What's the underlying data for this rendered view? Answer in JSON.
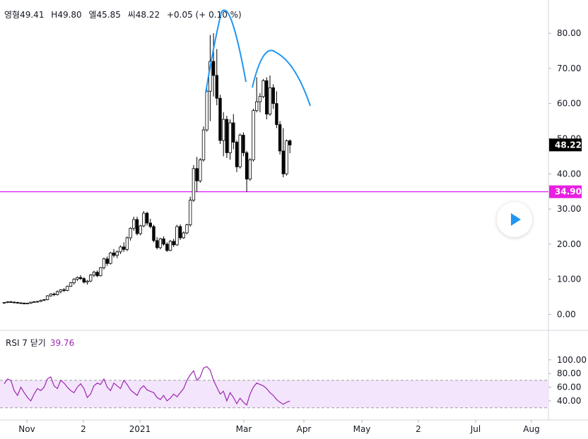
{
  "legend": {
    "open_label": "영형",
    "open": "49.41",
    "high_label": "H",
    "high": "49.80",
    "low_label": "엘",
    "low": "45.85",
    "close_label": "씨",
    "close": "48.22",
    "change": "+0.05 (+ 0.10 %)"
  },
  "rsi_legend": {
    "label": "RSI 7 닫기",
    "value": "39.76"
  },
  "price_axis": {
    "ticks": [
      "80.00",
      "70.00",
      "60.00",
      "50.00",
      "40.00",
      "30.00",
      "20.00",
      "10.00",
      "0.00"
    ]
  },
  "rsi_axis": {
    "ticks": [
      "100.00",
      "80.00",
      "60.00",
      "40.00"
    ]
  },
  "time_axis": {
    "labels": [
      "Nov",
      "2",
      "2021",
      "Mar",
      "Apr",
      "May",
      "2",
      "Jul",
      "Aug"
    ]
  },
  "markers": {
    "last_price": "48.22",
    "support_level": "34.90",
    "support_value": 34.9
  },
  "colors": {
    "candle_up": "#ffffff",
    "candle_down": "#000000",
    "pattern_line": "#2196f3",
    "support_line": "#d500f9",
    "rsi_line": "#9c27b0",
    "rsi_band": "#f3e5fc",
    "last_price_bg": "#000000",
    "support_bg": "#e91ee0"
  },
  "chart_data": {
    "type": "candlestick",
    "ylim": [
      -3,
      88
    ],
    "x_axis_labels": [
      "Nov",
      "2",
      "2021",
      "Mar",
      "Apr",
      "May",
      "2",
      "Jul",
      "Aug"
    ],
    "candles": [
      [
        3.2,
        3.5,
        3.0,
        3.4
      ],
      [
        3.4,
        3.7,
        3.2,
        3.6
      ],
      [
        3.6,
        3.8,
        3.3,
        3.5
      ],
      [
        3.5,
        3.7,
        3.2,
        3.4
      ],
      [
        3.4,
        3.6,
        3.1,
        3.3
      ],
      [
        3.3,
        3.5,
        3.0,
        3.2
      ],
      [
        3.2,
        3.4,
        2.9,
        3.1
      ],
      [
        3.1,
        3.3,
        2.9,
        3.2
      ],
      [
        3.2,
        3.6,
        3.0,
        3.5
      ],
      [
        3.5,
        3.8,
        3.3,
        3.6
      ],
      [
        3.6,
        3.9,
        3.4,
        3.7
      ],
      [
        3.7,
        4.2,
        3.5,
        4.0
      ],
      [
        4.0,
        4.4,
        3.8,
        4.2
      ],
      [
        4.2,
        5.5,
        4.0,
        5.3
      ],
      [
        5.3,
        6.0,
        5.0,
        5.8
      ],
      [
        5.8,
        6.2,
        5.2,
        5.6
      ],
      [
        5.6,
        6.8,
        5.4,
        6.5
      ],
      [
        6.5,
        7.2,
        6.0,
        7.0
      ],
      [
        7.0,
        7.5,
        6.4,
        6.8
      ],
      [
        6.8,
        8.2,
        6.6,
        8.0
      ],
      [
        8.0,
        9.2,
        7.8,
        9.0
      ],
      [
        9.0,
        10.3,
        8.5,
        10.0
      ],
      [
        10.0,
        10.8,
        9.5,
        10.5
      ],
      [
        10.5,
        11.2,
        9.8,
        10.2
      ],
      [
        10.2,
        10.6,
        8.8,
        9.2
      ],
      [
        9.2,
        9.8,
        8.5,
        9.5
      ],
      [
        9.5,
        11.5,
        9.2,
        11.2
      ],
      [
        11.2,
        12.4,
        10.6,
        12.0
      ],
      [
        12.0,
        12.5,
        10.6,
        11.0
      ],
      [
        11.0,
        13.5,
        10.8,
        13.3
      ],
      [
        13.3,
        16.2,
        12.8,
        15.8
      ],
      [
        15.8,
        16.5,
        13.8,
        14.5
      ],
      [
        14.5,
        17.8,
        14.2,
        17.5
      ],
      [
        17.5,
        18.6,
        16.2,
        16.8
      ],
      [
        16.8,
        18.2,
        16.0,
        17.8
      ],
      [
        17.8,
        19.6,
        17.2,
        19.2
      ],
      [
        19.2,
        20.5,
        17.8,
        18.5
      ],
      [
        18.5,
        22.2,
        18.0,
        21.8
      ],
      [
        21.8,
        24.8,
        21.0,
        24.5
      ],
      [
        24.5,
        27.8,
        23.8,
        27.0
      ],
      [
        27.0,
        27.8,
        22.5,
        23.0
      ],
      [
        23.0,
        25.5,
        22.5,
        25.2
      ],
      [
        25.2,
        29.4,
        24.8,
        28.8
      ],
      [
        28.8,
        29.2,
        25.3,
        26.0
      ],
      [
        26.0,
        27.2,
        24.5,
        25.0
      ],
      [
        25.0,
        25.5,
        20.5,
        21.0
      ],
      [
        21.0,
        22.0,
        18.5,
        19.0
      ],
      [
        19.0,
        21.8,
        18.5,
        21.5
      ],
      [
        21.5,
        22.2,
        19.5,
        20.0
      ],
      [
        20.0,
        20.5,
        17.8,
        18.2
      ],
      [
        18.2,
        21.2,
        18.0,
        20.8
      ],
      [
        20.8,
        21.5,
        19.2,
        19.8
      ],
      [
        19.8,
        25.5,
        19.5,
        25.0
      ],
      [
        25.0,
        25.6,
        21.2,
        21.8
      ],
      [
        21.8,
        23.6,
        21.5,
        23.2
      ],
      [
        23.2,
        25.8,
        22.8,
        25.5
      ],
      [
        25.5,
        33.5,
        25.0,
        32.5
      ],
      [
        32.5,
        42.5,
        32.0,
        41.5
      ],
      [
        41.5,
        44.8,
        34.9,
        38.0
      ],
      [
        38.0,
        44.5,
        37.5,
        44.0
      ],
      [
        44.0,
        53.5,
        43.5,
        52.5
      ],
      [
        52.5,
        64.5,
        52.0,
        63.5
      ],
      [
        63.5,
        79.5,
        55.0,
        72.0
      ],
      [
        72.0,
        80.0,
        62.0,
        68.0
      ],
      [
        68.0,
        75.5,
        59.5,
        61.5
      ],
      [
        61.5,
        62.5,
        48.5,
        49.5
      ],
      [
        49.5,
        57.5,
        45.0,
        55.5
      ],
      [
        55.5,
        56.5,
        44.5,
        46.0
      ],
      [
        46.0,
        55.5,
        44.0,
        54.5
      ],
      [
        54.5,
        57.0,
        47.0,
        49.0
      ],
      [
        49.0,
        49.5,
        40.5,
        42.0
      ],
      [
        42.0,
        51.5,
        41.5,
        51.0
      ],
      [
        51.0,
        51.8,
        45.0,
        46.0
      ],
      [
        46.0,
        46.5,
        34.9,
        38.5
      ],
      [
        38.5,
        44.5,
        38.0,
        44.0
      ],
      [
        44.0,
        58.5,
        43.5,
        58.0
      ],
      [
        58.0,
        67.5,
        57.5,
        60.5
      ],
      [
        60.5,
        63.0,
        57.5,
        62.0
      ],
      [
        62.0,
        67.0,
        61.5,
        66.5
      ],
      [
        66.5,
        67.5,
        55.5,
        57.0
      ],
      [
        57.0,
        68.0,
        56.5,
        64.5
      ],
      [
        64.5,
        65.5,
        58.5,
        60.0
      ],
      [
        60.0,
        63.5,
        53.0,
        54.0
      ],
      [
        54.0,
        55.0,
        45.5,
        46.5
      ],
      [
        46.5,
        53.0,
        39.0,
        40.0
      ],
      [
        40.0,
        49.8,
        39.5,
        49.4
      ],
      [
        49.4,
        49.8,
        45.85,
        48.22
      ]
    ],
    "support_level": 34.9,
    "last_close": 48.22,
    "rsi": {
      "name": "RSI 7",
      "ylim": [
        25,
        103
      ],
      "band": [
        30,
        70
      ],
      "last": 39.76,
      "values": [
        65,
        72,
        70,
        55,
        48,
        60,
        52,
        45,
        40,
        50,
        58,
        55,
        60,
        72,
        75,
        62,
        58,
        70,
        66,
        60,
        55,
        52,
        60,
        65,
        58,
        45,
        50,
        62,
        66,
        64,
        72,
        60,
        55,
        66,
        62,
        58,
        70,
        64,
        56,
        52,
        48,
        58,
        62,
        56,
        54,
        52,
        45,
        42,
        48,
        40,
        44,
        50,
        46,
        52,
        58,
        70,
        78,
        84,
        70,
        75,
        88,
        90,
        85,
        70,
        60,
        50,
        54,
        40,
        52,
        45,
        36,
        44,
        38,
        34,
        50,
        60,
        66,
        64,
        62,
        58,
        52,
        48,
        42,
        38,
        35,
        38,
        39.76
      ]
    }
  }
}
